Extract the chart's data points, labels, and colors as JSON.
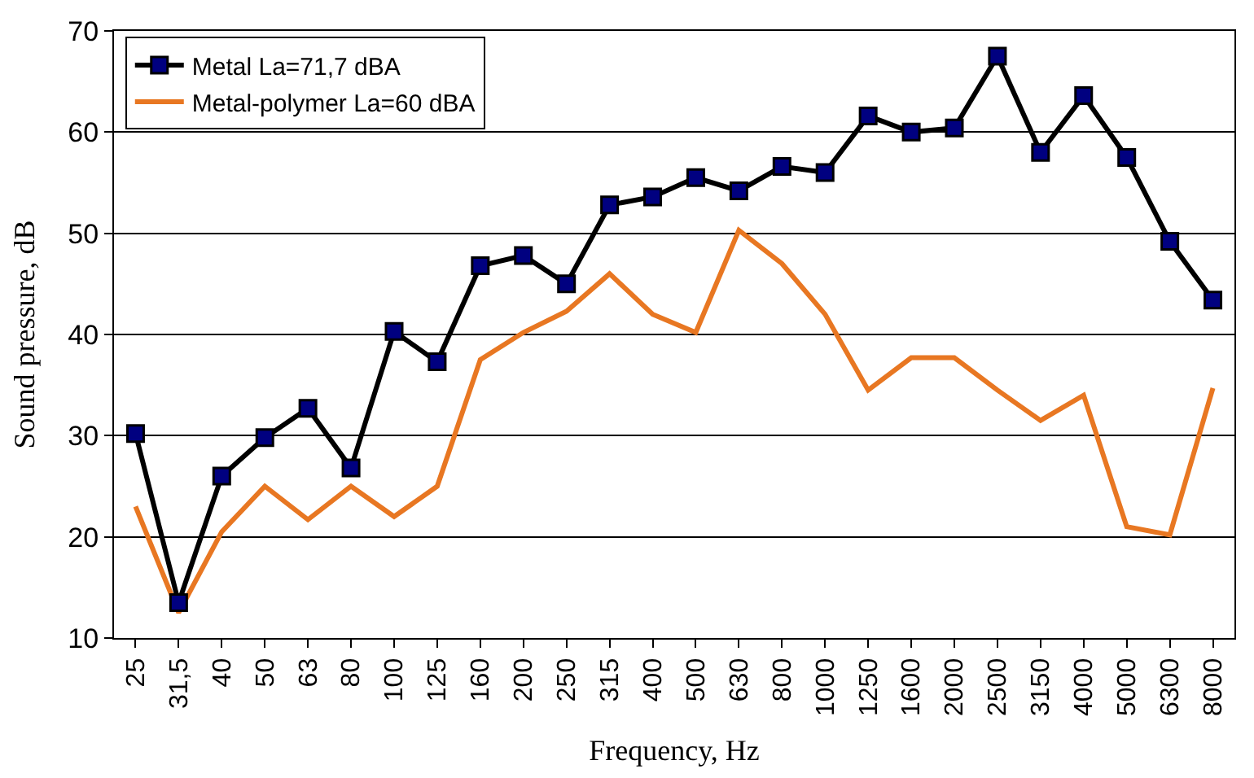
{
  "chart_data": {
    "type": "line",
    "xlabel": "Frequency, Hz",
    "ylabel": "Sound pressure, dB",
    "categories": [
      "25",
      "31,5",
      "40",
      "50",
      "63",
      "80",
      "100",
      "125",
      "160",
      "200",
      "250",
      "315",
      "400",
      "500",
      "630",
      "800",
      "1000",
      "1250",
      "1600",
      "2000",
      "2500",
      "3150",
      "4000",
      "5000",
      "6300",
      "8000"
    ],
    "series": [
      {
        "name": "Metal La=71,7 dBA",
        "color": "#000000",
        "marker": "square",
        "values": [
          30.2,
          13.5,
          26,
          29.8,
          32.7,
          26.8,
          40.3,
          37.3,
          46.8,
          47.8,
          45,
          52.8,
          53.6,
          55.5,
          54.2,
          56.6,
          56,
          61.6,
          60,
          60.4,
          67.5,
          58,
          63.6,
          57.5,
          49.2,
          43.4
        ]
      },
      {
        "name": "Metal-polymer La=60 dBA",
        "color": "#e87722",
        "marker": "none",
        "values": [
          23,
          12.5,
          20.5,
          25,
          21.7,
          25,
          22,
          25,
          37.5,
          40.2,
          42.3,
          46,
          42,
          40.2,
          50.3,
          47,
          42,
          34.5,
          37.7,
          37.7,
          34.5,
          31.5,
          34,
          21,
          20.2,
          34.7
        ]
      }
    ],
    "ylim": [
      10,
      70
    ],
    "yticks": [
      10,
      20,
      30,
      40,
      50,
      60,
      70
    ],
    "grid": "y",
    "legend": "top left",
    "line_style": "solid"
  }
}
